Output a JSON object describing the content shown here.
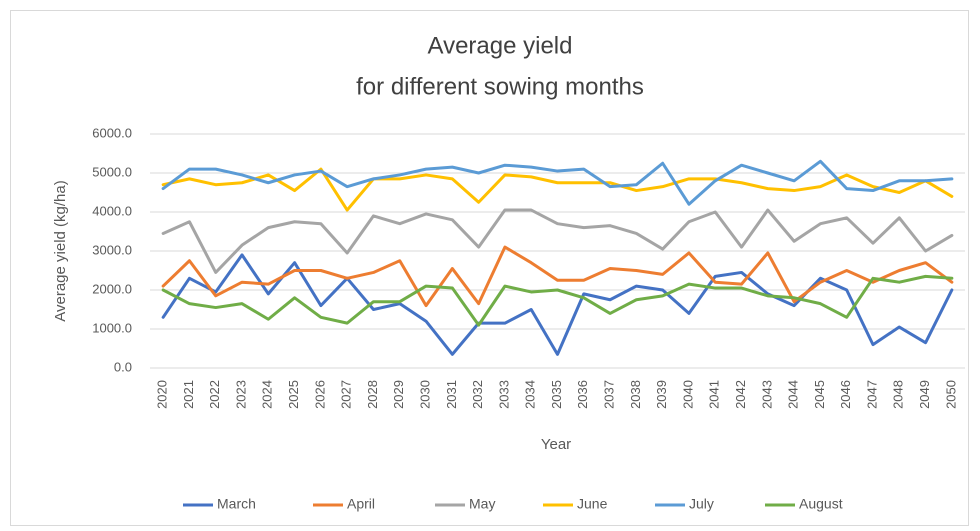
{
  "chart_data": {
    "type": "line",
    "title": [
      "Average yield",
      "for different sowing months"
    ],
    "x_label": "Year",
    "y_label": "Average yield (kg/ha)",
    "categories": [
      "2020",
      "2021",
      "2022",
      "2023",
      "2024",
      "2025",
      "2026",
      "2027",
      "2028",
      "2029",
      "2030",
      "2031",
      "2032",
      "2033",
      "2034",
      "2035",
      "2036",
      "2037",
      "2038",
      "2039",
      "2040",
      "2041",
      "2042",
      "2043",
      "2044",
      "2045",
      "2046",
      "2047",
      "2048",
      "2049",
      "2050"
    ],
    "ylim": [
      0,
      6000
    ],
    "yticks": [
      {
        "value": 0,
        "label": "0.0"
      },
      {
        "value": 1000,
        "label": "1000.0"
      },
      {
        "value": 2000,
        "label": "2000.0"
      },
      {
        "value": 3000,
        "label": "3000.0"
      },
      {
        "value": 4000,
        "label": "4000.0"
      },
      {
        "value": 5000,
        "label": "5000.0"
      },
      {
        "value": 6000,
        "label": "6000.0"
      }
    ],
    "grid": true,
    "legend": "bottom",
    "series": [
      {
        "name": "March",
        "color": "#4472c4",
        "values": [
          1300,
          2300,
          1950,
          2900,
          1900,
          2700,
          1600,
          2300,
          1500,
          1650,
          1200,
          350,
          1150,
          1150,
          1500,
          350,
          1900,
          1750,
          2100,
          2000,
          1400,
          2350,
          2450,
          1900,
          1600,
          2300,
          2000,
          600,
          1050,
          650,
          2000
        ]
      },
      {
        "name": "April",
        "color": "#ed7d31",
        "values": [
          2100,
          2750,
          1850,
          2200,
          2150,
          2500,
          2500,
          2300,
          2450,
          2750,
          1600,
          2550,
          1650,
          3100,
          2700,
          2250,
          2250,
          2550,
          2500,
          2400,
          2950,
          2200,
          2150,
          2950,
          1700,
          2200,
          2500,
          2200,
          2500,
          2700,
          2200
        ]
      },
      {
        "name": "May",
        "color": "#a5a5a5",
        "values": [
          3450,
          3750,
          2450,
          3150,
          3600,
          3750,
          3700,
          2950,
          3900,
          3700,
          3950,
          3800,
          3100,
          4050,
          4050,
          3700,
          3600,
          3650,
          3450,
          3050,
          3750,
          4000,
          3100,
          4050,
          3250,
          3700,
          3850,
          3200,
          3850,
          3000,
          3400
        ]
      },
      {
        "name": "June",
        "color": "#ffc000",
        "values": [
          4700,
          4850,
          4700,
          4750,
          4950,
          4550,
          5100,
          4050,
          4850,
          4850,
          4950,
          4850,
          4250,
          4950,
          4900,
          4750,
          4750,
          4750,
          4550,
          4650,
          4850,
          4850,
          4750,
          4600,
          4550,
          4650,
          4950,
          4650,
          4500,
          4800,
          4400
        ]
      },
      {
        "name": "July",
        "color": "#5b9bd5",
        "values": [
          4600,
          5100,
          5100,
          4950,
          4750,
          4950,
          5050,
          4650,
          4850,
          4950,
          5100,
          5150,
          5000,
          5200,
          5150,
          5050,
          5100,
          4650,
          4700,
          5250,
          4200,
          4800,
          5200,
          5000,
          4800,
          5300,
          4600,
          4550,
          4800,
          4800,
          4850
        ]
      },
      {
        "name": "August",
        "color": "#70ad47",
        "values": [
          2000,
          1650,
          1550,
          1650,
          1250,
          1800,
          1300,
          1150,
          1700,
          1700,
          2100,
          2050,
          1100,
          2100,
          1950,
          2000,
          1800,
          1400,
          1750,
          1850,
          2150,
          2050,
          2050,
          1850,
          1800,
          1650,
          1300,
          2300,
          2200,
          2350,
          2300
        ]
      }
    ]
  }
}
